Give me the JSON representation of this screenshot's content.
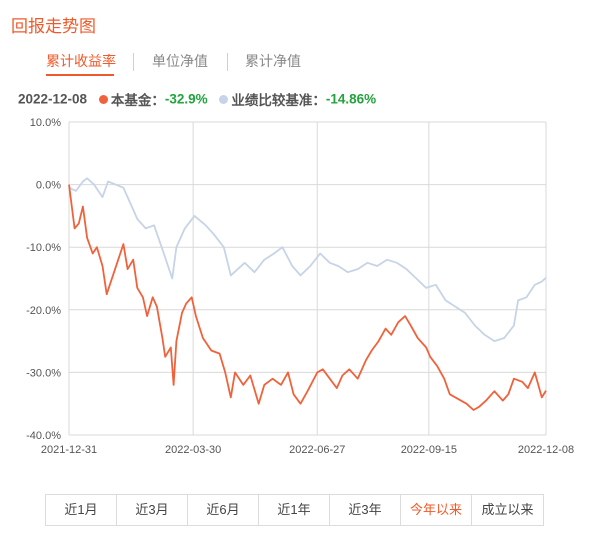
{
  "header": {
    "title": "回报走势图"
  },
  "tabs": [
    {
      "label": "累计收益率",
      "active": true
    },
    {
      "label": "单位净值",
      "active": false
    },
    {
      "label": "累计净值",
      "active": false
    }
  ],
  "legend": {
    "date": "2022-12-08",
    "fund_label": "本基金：",
    "fund_value": "-32.9%",
    "benchmark_label": "业绩比较基准：",
    "benchmark_value": "-14.86%",
    "fund_color": "#f0623c",
    "benchmark_color": "#c7d3e6",
    "value_color": "#22a33d"
  },
  "chart_data": {
    "type": "line",
    "title": "",
    "xlabel": "",
    "ylabel": "",
    "x_ticks": [
      "2021-12-31",
      "2022-03-30",
      "2022-06-27",
      "2022-09-15",
      "2022-12-08"
    ],
    "y_ticks": [
      "10.0%",
      "0.0%",
      "-10.0%",
      "-20.0%",
      "-30.0%",
      "-40.0%"
    ],
    "ylim": [
      -40,
      10
    ],
    "xlim": [
      "2021-12-31",
      "2022-12-08"
    ],
    "grid": true,
    "series": [
      {
        "name": "本基金",
        "color": "#f0623c",
        "points": [
          [
            "2021-12-31",
            0.0
          ],
          [
            "2022-01-04",
            -7.0
          ],
          [
            "2022-01-07",
            -6.2
          ],
          [
            "2022-01-10",
            -3.5
          ],
          [
            "2022-01-13",
            -8.5
          ],
          [
            "2022-01-17",
            -11.0
          ],
          [
            "2022-01-20",
            -10.0
          ],
          [
            "2022-01-24",
            -13.0
          ],
          [
            "2022-01-27",
            -17.5
          ],
          [
            "2022-02-08",
            -9.5
          ],
          [
            "2022-02-11",
            -13.5
          ],
          [
            "2022-02-15",
            -12.0
          ],
          [
            "2022-02-18",
            -16.5
          ],
          [
            "2022-02-22",
            -18.0
          ],
          [
            "2022-02-25",
            -21.0
          ],
          [
            "2022-03-01",
            -18.0
          ],
          [
            "2022-03-04",
            -19.5
          ],
          [
            "2022-03-08",
            -24.5
          ],
          [
            "2022-03-10",
            -27.5
          ],
          [
            "2022-03-14",
            -26.0
          ],
          [
            "2022-03-16",
            -32.0
          ],
          [
            "2022-03-18",
            -25.0
          ],
          [
            "2022-03-22",
            -20.5
          ],
          [
            "2022-03-25",
            -19.0
          ],
          [
            "2022-03-29",
            -18.0
          ],
          [
            "2022-04-01",
            -21.0
          ],
          [
            "2022-04-06",
            -24.5
          ],
          [
            "2022-04-12",
            -26.5
          ],
          [
            "2022-04-18",
            -27.0
          ],
          [
            "2022-04-22",
            -30.0
          ],
          [
            "2022-04-26",
            -34.0
          ],
          [
            "2022-04-29",
            -30.0
          ],
          [
            "2022-05-05",
            -32.0
          ],
          [
            "2022-05-10",
            -30.5
          ],
          [
            "2022-05-16",
            -35.0
          ],
          [
            "2022-05-20",
            -32.0
          ],
          [
            "2022-05-26",
            -31.0
          ],
          [
            "2022-06-01",
            -32.0
          ],
          [
            "2022-06-06",
            -30.0
          ],
          [
            "2022-06-10",
            -33.5
          ],
          [
            "2022-06-15",
            -35.0
          ],
          [
            "2022-06-20",
            -33.0
          ],
          [
            "2022-06-27",
            -30.0
          ],
          [
            "2022-07-01",
            -29.5
          ],
          [
            "2022-07-06",
            -31.0
          ],
          [
            "2022-07-11",
            -32.5
          ],
          [
            "2022-07-15",
            -30.5
          ],
          [
            "2022-07-20",
            -29.5
          ],
          [
            "2022-07-26",
            -31.0
          ],
          [
            "2022-08-01",
            -28.0
          ],
          [
            "2022-08-05",
            -26.5
          ],
          [
            "2022-08-10",
            -25.0
          ],
          [
            "2022-08-15",
            -23.0
          ],
          [
            "2022-08-19",
            -24.0
          ],
          [
            "2022-08-24",
            -22.0
          ],
          [
            "2022-08-29",
            -21.0
          ],
          [
            "2022-09-02",
            -22.5
          ],
          [
            "2022-09-07",
            -24.5
          ],
          [
            "2022-09-13",
            -26.0
          ],
          [
            "2022-09-16",
            -27.5
          ],
          [
            "2022-09-21",
            -29.0
          ],
          [
            "2022-09-26",
            -31.0
          ],
          [
            "2022-09-30",
            -33.5
          ],
          [
            "2022-10-12",
            -35.0
          ],
          [
            "2022-10-17",
            -36.0
          ],
          [
            "2022-10-21",
            -35.5
          ],
          [
            "2022-10-26",
            -34.5
          ],
          [
            "2022-11-01",
            -33.0
          ],
          [
            "2022-11-07",
            -34.5
          ],
          [
            "2022-11-11",
            -33.5
          ],
          [
            "2022-11-15",
            -31.0
          ],
          [
            "2022-11-21",
            -31.5
          ],
          [
            "2022-11-25",
            -32.5
          ],
          [
            "2022-11-30",
            -30.0
          ],
          [
            "2022-12-05",
            -34.0
          ],
          [
            "2022-12-08",
            -32.9
          ]
        ]
      },
      {
        "name": "业绩比较基准",
        "color": "#c7d3e6",
        "points": [
          [
            "2021-12-31",
            -0.5
          ],
          [
            "2022-01-05",
            -1.0
          ],
          [
            "2022-01-10",
            0.5
          ],
          [
            "2022-01-13",
            1.0
          ],
          [
            "2022-01-18",
            0.0
          ],
          [
            "2022-01-24",
            -2.0
          ],
          [
            "2022-01-28",
            0.5
          ],
          [
            "2022-02-08",
            -0.5
          ],
          [
            "2022-02-14",
            -3.5
          ],
          [
            "2022-02-18",
            -5.5
          ],
          [
            "2022-02-24",
            -7.0
          ],
          [
            "2022-03-02",
            -6.5
          ],
          [
            "2022-03-09",
            -11.0
          ],
          [
            "2022-03-15",
            -15.0
          ],
          [
            "2022-03-18",
            -10.0
          ],
          [
            "2022-03-24",
            -7.0
          ],
          [
            "2022-03-31",
            -5.0
          ],
          [
            "2022-04-08",
            -6.5
          ],
          [
            "2022-04-14",
            -8.0
          ],
          [
            "2022-04-21",
            -10.0
          ],
          [
            "2022-04-26",
            -14.5
          ],
          [
            "2022-05-06",
            -12.5
          ],
          [
            "2022-05-13",
            -14.0
          ],
          [
            "2022-05-20",
            -12.0
          ],
          [
            "2022-05-27",
            -11.0
          ],
          [
            "2022-06-02",
            -10.0
          ],
          [
            "2022-06-09",
            -13.0
          ],
          [
            "2022-06-15",
            -14.5
          ],
          [
            "2022-06-22",
            -13.0
          ],
          [
            "2022-06-29",
            -11.0
          ],
          [
            "2022-07-06",
            -12.5
          ],
          [
            "2022-07-12",
            -13.0
          ],
          [
            "2022-07-19",
            -14.0
          ],
          [
            "2022-07-26",
            -13.5
          ],
          [
            "2022-08-02",
            -12.5
          ],
          [
            "2022-08-09",
            -13.0
          ],
          [
            "2022-08-16",
            -12.0
          ],
          [
            "2022-08-23",
            -12.5
          ],
          [
            "2022-08-30",
            -13.5
          ],
          [
            "2022-09-06",
            -15.0
          ],
          [
            "2022-09-13",
            -16.5
          ],
          [
            "2022-09-20",
            -16.0
          ],
          [
            "2022-09-27",
            -18.5
          ],
          [
            "2022-10-11",
            -20.5
          ],
          [
            "2022-10-18",
            -22.5
          ],
          [
            "2022-10-25",
            -24.0
          ],
          [
            "2022-11-01",
            -25.0
          ],
          [
            "2022-11-08",
            -24.5
          ],
          [
            "2022-11-15",
            -22.5
          ],
          [
            "2022-11-18",
            -18.5
          ],
          [
            "2022-11-24",
            -18.0
          ],
          [
            "2022-11-30",
            -16.0
          ],
          [
            "2022-12-05",
            -15.5
          ],
          [
            "2022-12-08",
            -14.86
          ]
        ]
      }
    ]
  },
  "ranges": [
    {
      "label": "近1月",
      "active": false
    },
    {
      "label": "近3月",
      "active": false
    },
    {
      "label": "近6月",
      "active": false
    },
    {
      "label": "近1年",
      "active": false
    },
    {
      "label": "近3年",
      "active": false
    },
    {
      "label": "今年以来",
      "active": true
    },
    {
      "label": "成立以来",
      "active": false
    }
  ]
}
